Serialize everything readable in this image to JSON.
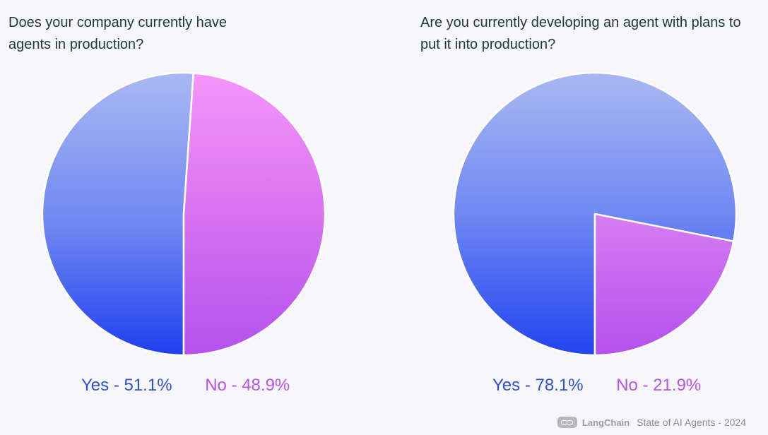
{
  "chart_data": [
    {
      "type": "pie",
      "title": "Does your company currently have agents in production?",
      "categories": [
        "Yes",
        "No"
      ],
      "values": [
        51.1,
        48.9
      ],
      "legend_labels": [
        "Yes - 51.1%",
        "No - 48.9%"
      ],
      "colors": [
        "#2f4fd6",
        "#b654e8"
      ],
      "legend_position": "bottom"
    },
    {
      "type": "pie",
      "title": "Are you currently developing an agent with plans to put it into production?",
      "categories": [
        "Yes",
        "No"
      ],
      "values": [
        78.1,
        21.9
      ],
      "legend_labels": [
        "Yes - 78.1%",
        "No - 21.9%"
      ],
      "colors": [
        "#2f4fd6",
        "#b654e8"
      ],
      "legend_position": "bottom"
    }
  ],
  "footer": {
    "logo_icon": "langchain-logo-icon",
    "brand": "LangChain",
    "caption": "State of AI Agents - 2024"
  }
}
